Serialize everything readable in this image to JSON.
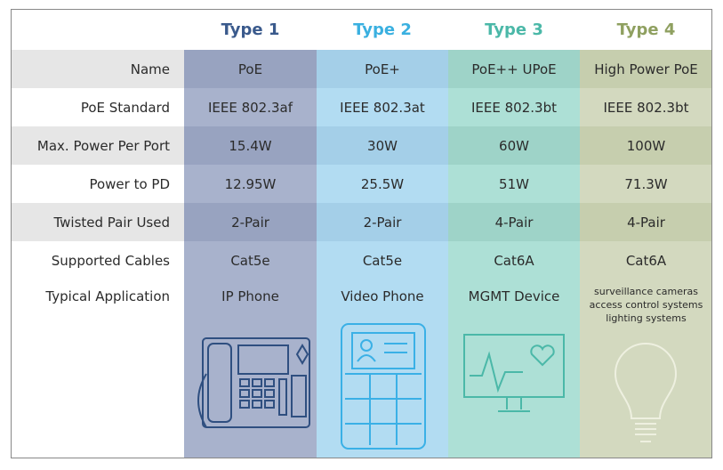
{
  "table": {
    "columns": [
      "Type 1",
      "Type 2",
      "Type 3",
      "Type 4"
    ],
    "rows": [
      {
        "label": "Name",
        "cells": [
          "PoE",
          "PoE+",
          "PoE++ UPoE",
          "High Power PoE"
        ]
      },
      {
        "label": "PoE Standard",
        "cells": [
          "IEEE 802.3af",
          "IEEE 802.3at",
          "IEEE 802.3bt",
          "IEEE 802.3bt"
        ]
      },
      {
        "label": "Max. Power Per Port",
        "cells": [
          "15.4W",
          "30W",
          "60W",
          "100W"
        ]
      },
      {
        "label": "Power to PD",
        "cells": [
          "12.95W",
          "25.5W",
          "51W",
          "71.3W"
        ]
      },
      {
        "label": "Twisted Pair Used",
        "cells": [
          "2-Pair",
          "2-Pair",
          "4-Pair",
          "4-Pair"
        ]
      },
      {
        "label": "Supported Cables",
        "cells": [
          "Cat5e",
          "Cat5e",
          "Cat6A",
          "Cat6A"
        ]
      },
      {
        "label": "Typical Application",
        "cells": [
          [
            "IP Phone"
          ],
          [
            "Video Phone"
          ],
          [
            "MGMT Device"
          ],
          [
            "surveillance cameras",
            "access control systems",
            "lighting systems"
          ]
        ]
      }
    ]
  }
}
